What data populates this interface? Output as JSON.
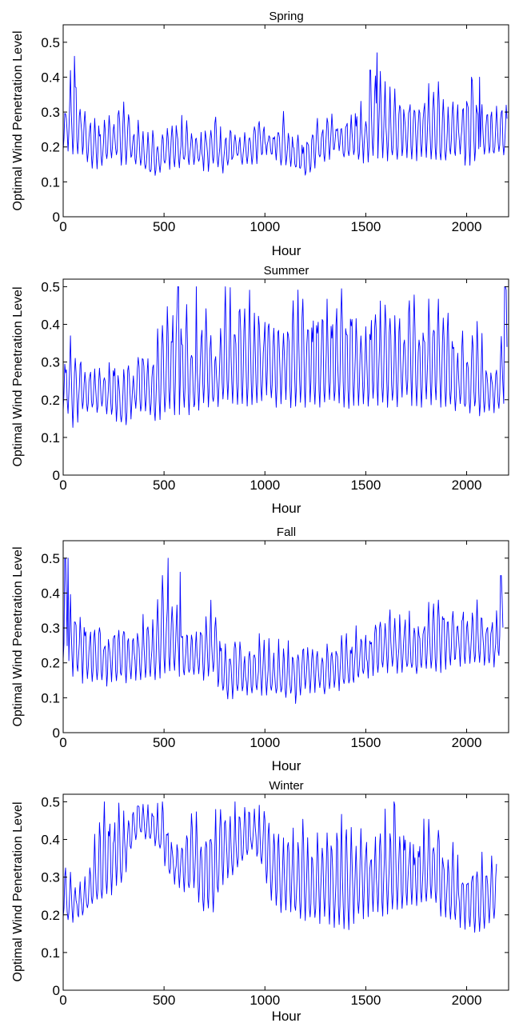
{
  "chart_data": [
    {
      "type": "line",
      "title": "Spring",
      "xlabel": "Hour",
      "ylabel": "Optimal Wind Penetration Level",
      "xlim": [
        0,
        2208
      ],
      "ylim": [
        0,
        0.55
      ],
      "xticks": [
        0,
        500,
        1000,
        1500,
        2000
      ],
      "yticks": [
        0,
        0.1,
        0.2,
        0.3,
        0.4,
        0.5
      ],
      "xtick_labels": [
        "0",
        "500",
        "1000",
        "1500",
        "2000"
      ],
      "ytick_labels": [
        "0",
        "0.1",
        "0.2",
        "0.3",
        "0.4",
        "0.5"
      ],
      "grid": false,
      "series": [
        {
          "color": "#0000ff",
          "x": [
            0,
            50,
            100,
            150,
            200,
            250,
            300,
            350,
            400,
            450,
            500,
            550,
            600,
            650,
            700,
            750,
            800,
            850,
            900,
            950,
            1000,
            1050,
            1100,
            1150,
            1200,
            1250,
            1300,
            1350,
            1400,
            1450,
            1500,
            1550,
            1600,
            1650,
            1700,
            1750,
            1800,
            1850,
            1900,
            1950,
            2000,
            2050,
            2100,
            2150,
            2200
          ],
          "lows": [
            0.2,
            0.18,
            0.18,
            0.14,
            0.16,
            0.17,
            0.15,
            0.16,
            0.13,
            0.12,
            0.14,
            0.15,
            0.15,
            0.16,
            0.14,
            0.14,
            0.13,
            0.17,
            0.15,
            0.16,
            0.17,
            0.17,
            0.15,
            0.13,
            0.12,
            0.15,
            0.17,
            0.18,
            0.17,
            0.17,
            0.16,
            0.18,
            0.17,
            0.17,
            0.18,
            0.17,
            0.18,
            0.17,
            0.16,
            0.18,
            0.15,
            0.17,
            0.17,
            0.18,
            0.19
          ],
          "highs": [
            0.33,
            0.46,
            0.35,
            0.3,
            0.3,
            0.31,
            0.35,
            0.28,
            0.26,
            0.26,
            0.26,
            0.28,
            0.28,
            0.25,
            0.27,
            0.3,
            0.25,
            0.25,
            0.25,
            0.3,
            0.28,
            0.26,
            0.3,
            0.24,
            0.25,
            0.29,
            0.29,
            0.3,
            0.31,
            0.33,
            0.33,
            0.47,
            0.39,
            0.38,
            0.36,
            0.36,
            0.39,
            0.38,
            0.35,
            0.36,
            0.4,
            0.4,
            0.33,
            0.35,
            0.34
          ],
          "spikes": [
            [
              55,
              0.46
            ],
            [
              65,
              0.37
            ],
            [
              1522,
              0.42
            ],
            [
              1555,
              0.47
            ],
            [
              2025,
              0.4
            ],
            [
              2065,
              0.4
            ]
          ]
        }
      ]
    },
    {
      "type": "line",
      "title": "Summer",
      "xlabel": "Hour",
      "ylabel": "Optimal Wind Penetration Level",
      "xlim": [
        0,
        2208
      ],
      "ylim": [
        0,
        0.52
      ],
      "xticks": [
        0,
        500,
        1000,
        1500,
        2000
      ],
      "yticks": [
        0,
        0.1,
        0.2,
        0.3,
        0.4,
        0.5
      ],
      "xtick_labels": [
        "0",
        "500",
        "1000",
        "1500",
        "2000"
      ],
      "ytick_labels": [
        "0",
        "0.1",
        "0.2",
        "0.3",
        "0.4",
        "0.5"
      ],
      "grid": false,
      "series": [
        {
          "color": "#0000ff",
          "x": [
            0,
            50,
            100,
            150,
            200,
            250,
            300,
            350,
            400,
            450,
            500,
            550,
            600,
            650,
            700,
            750,
            800,
            850,
            900,
            950,
            1000,
            1050,
            1100,
            1150,
            1200,
            1250,
            1300,
            1350,
            1400,
            1450,
            1500,
            1550,
            1600,
            1650,
            1700,
            1750,
            1800,
            1850,
            1900,
            1950,
            2000,
            2050,
            2100,
            2150,
            2200
          ],
          "lows": [
            0.18,
            0.13,
            0.17,
            0.17,
            0.17,
            0.16,
            0.13,
            0.17,
            0.17,
            0.15,
            0.16,
            0.17,
            0.17,
            0.17,
            0.19,
            0.18,
            0.19,
            0.19,
            0.19,
            0.19,
            0.2,
            0.19,
            0.19,
            0.18,
            0.19,
            0.18,
            0.19,
            0.19,
            0.19,
            0.18,
            0.19,
            0.19,
            0.19,
            0.19,
            0.2,
            0.19,
            0.19,
            0.19,
            0.18,
            0.18,
            0.17,
            0.17,
            0.16,
            0.17,
            0.2
          ],
          "highs": [
            0.37,
            0.38,
            0.32,
            0.3,
            0.3,
            0.31,
            0.31,
            0.32,
            0.37,
            0.34,
            0.45,
            0.5,
            0.5,
            0.36,
            0.5,
            0.34,
            0.5,
            0.5,
            0.5,
            0.47,
            0.5,
            0.45,
            0.5,
            0.5,
            0.5,
            0.5,
            0.5,
            0.5,
            0.5,
            0.5,
            0.43,
            0.5,
            0.5,
            0.44,
            0.5,
            0.5,
            0.45,
            0.5,
            0.45,
            0.4,
            0.38,
            0.42,
            0.32,
            0.31,
            0.5
          ],
          "spikes": [
            [
              570,
              0.5
            ],
            [
              660,
              0.5
            ],
            [
              2190,
              0.5
            ]
          ]
        }
      ]
    },
    {
      "type": "line",
      "title": "Fall",
      "xlabel": "Hour",
      "ylabel": "Optimal Wind Penetration Level",
      "xlim": [
        0,
        2208
      ],
      "ylim": [
        0,
        0.55
      ],
      "xticks": [
        0,
        500,
        1000,
        1500,
        2000
      ],
      "yticks": [
        0,
        0.1,
        0.2,
        0.3,
        0.4,
        0.5
      ],
      "xtick_labels": [
        "0",
        "500",
        "1000",
        "1500",
        "2000"
      ],
      "ytick_labels": [
        "0",
        "0.1",
        "0.2",
        "0.3",
        "0.4",
        "0.5"
      ],
      "grid": false,
      "series": [
        {
          "color": "#0000ff",
          "x": [
            0,
            50,
            100,
            150,
            200,
            250,
            300,
            350,
            400,
            450,
            500,
            550,
            600,
            650,
            700,
            750,
            800,
            850,
            900,
            950,
            1000,
            1050,
            1100,
            1150,
            1200,
            1250,
            1300,
            1350,
            1400,
            1450,
            1500,
            1550,
            1600,
            1650,
            1700,
            1750,
            1800,
            1850,
            1900,
            1950,
            2000,
            2050,
            2100,
            2150,
            2180
          ],
          "lows": [
            0.2,
            0.17,
            0.15,
            0.15,
            0.14,
            0.15,
            0.15,
            0.16,
            0.16,
            0.16,
            0.17,
            0.17,
            0.16,
            0.16,
            0.16,
            0.16,
            0.11,
            0.1,
            0.12,
            0.11,
            0.12,
            0.1,
            0.11,
            0.09,
            0.12,
            0.12,
            0.12,
            0.13,
            0.13,
            0.15,
            0.16,
            0.17,
            0.18,
            0.18,
            0.18,
            0.17,
            0.18,
            0.18,
            0.18,
            0.2,
            0.2,
            0.2,
            0.19,
            0.2,
            0.27
          ],
          "highs": [
            0.5,
            0.37,
            0.35,
            0.39,
            0.33,
            0.33,
            0.33,
            0.32,
            0.34,
            0.34,
            0.5,
            0.45,
            0.32,
            0.31,
            0.37,
            0.38,
            0.27,
            0.3,
            0.25,
            0.27,
            0.28,
            0.27,
            0.28,
            0.29,
            0.28,
            0.26,
            0.27,
            0.28,
            0.3,
            0.3,
            0.3,
            0.33,
            0.36,
            0.35,
            0.36,
            0.35,
            0.38,
            0.4,
            0.4,
            0.39,
            0.37,
            0.4,
            0.37,
            0.35,
            0.45
          ],
          "spikes": [
            [
              10,
              0.5
            ],
            [
              25,
              0.5
            ],
            [
              520,
              0.5
            ],
            [
              580,
              0.46
            ],
            [
              2170,
              0.45
            ]
          ]
        }
      ]
    },
    {
      "type": "line",
      "title": "Winter",
      "xlabel": "Hour",
      "ylabel": "Optimal Wind Penetration Level",
      "xlim": [
        0,
        2208
      ],
      "ylim": [
        0,
        0.52
      ],
      "xticks": [
        0,
        500,
        1000,
        1500,
        2000
      ],
      "yticks": [
        0,
        0.1,
        0.2,
        0.3,
        0.4,
        0.5
      ],
      "xtick_labels": [
        "0",
        "500",
        "1000",
        "1500",
        "2000"
      ],
      "ytick_labels": [
        "0",
        "0.1",
        "0.2",
        "0.3",
        "0.4",
        "0.5"
      ],
      "grid": false,
      "series": [
        {
          "color": "#0000ff",
          "x": [
            0,
            50,
            100,
            150,
            200,
            250,
            300,
            350,
            400,
            450,
            500,
            550,
            600,
            650,
            700,
            750,
            800,
            850,
            900,
            950,
            1000,
            1050,
            1100,
            1150,
            1200,
            1250,
            1300,
            1350,
            1400,
            1450,
            1500,
            1550,
            1600,
            1650,
            1700,
            1750,
            1800,
            1850,
            1900,
            1950,
            2000,
            2050,
            2100,
            2150
          ],
          "lows": [
            0.19,
            0.19,
            0.2,
            0.22,
            0.24,
            0.26,
            0.3,
            0.4,
            0.41,
            0.4,
            0.34,
            0.28,
            0.26,
            0.27,
            0.2,
            0.22,
            0.3,
            0.32,
            0.34,
            0.38,
            0.3,
            0.22,
            0.21,
            0.2,
            0.19,
            0.18,
            0.19,
            0.17,
            0.16,
            0.19,
            0.2,
            0.2,
            0.21,
            0.2,
            0.22,
            0.22,
            0.24,
            0.22,
            0.19,
            0.18,
            0.17,
            0.16,
            0.17,
            0.18
          ],
          "highs": [
            0.35,
            0.3,
            0.28,
            0.4,
            0.5,
            0.5,
            0.5,
            0.5,
            0.5,
            0.5,
            0.5,
            0.4,
            0.45,
            0.5,
            0.45,
            0.5,
            0.5,
            0.5,
            0.5,
            0.5,
            0.5,
            0.48,
            0.45,
            0.45,
            0.46,
            0.42,
            0.47,
            0.45,
            0.48,
            0.45,
            0.47,
            0.45,
            0.5,
            0.5,
            0.47,
            0.44,
            0.45,
            0.46,
            0.4,
            0.38,
            0.35,
            0.38,
            0.37,
            0.38
          ],
          "spikes": [
            [
              1640,
              0.5
            ],
            [
              2160,
              0.38
            ]
          ]
        }
      ]
    }
  ]
}
